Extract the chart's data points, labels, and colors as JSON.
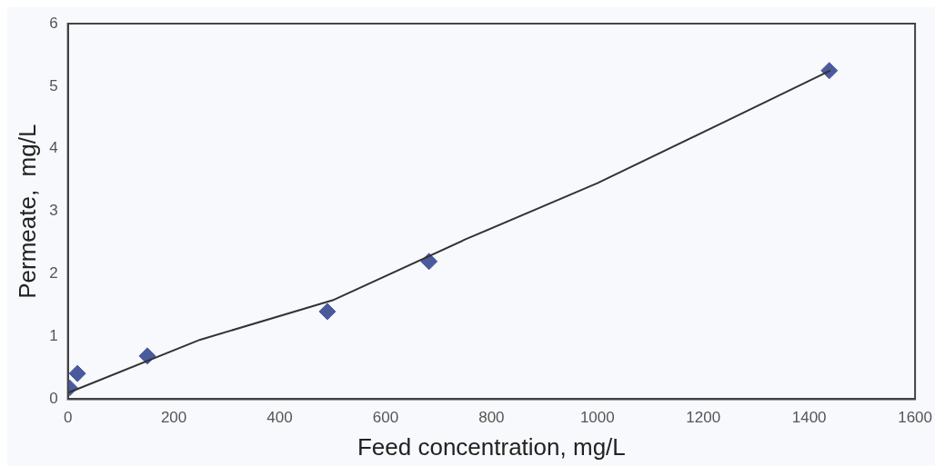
{
  "chart_data": {
    "type": "scatter",
    "xlabel": "Feed concentration, mg/L",
    "ylabel": "Permeate,  mg/L",
    "xlim": [
      0,
      1600
    ],
    "xticks": [
      0,
      200,
      400,
      600,
      800,
      1000,
      1200,
      1400,
      1600
    ],
    "ylim": [
      0,
      6
    ],
    "yticks": [
      0,
      1,
      2,
      3,
      4,
      5,
      6
    ],
    "grid": false,
    "legend": false,
    "series": [
      {
        "color": "#4a5a9c",
        "marker": "diamond",
        "x": [
          3,
          18,
          150,
          490,
          682,
          1438
        ],
        "values": [
          0.18,
          0.41,
          0.69,
          1.4,
          2.2,
          5.25
        ]
      },
      {
        "type": "line",
        "color": "#333333",
        "marker": "none",
        "line_style": "solid",
        "x": [
          0,
          250,
          500,
          750,
          1000,
          1250,
          1440
        ],
        "values": [
          0.1,
          0.95,
          1.58,
          2.55,
          3.45,
          4.47,
          5.25
        ]
      }
    ]
  }
}
